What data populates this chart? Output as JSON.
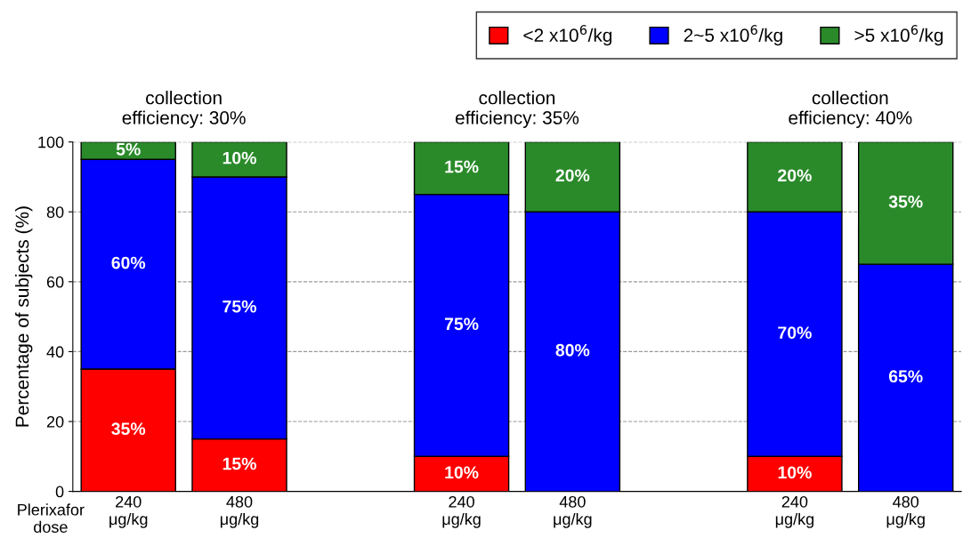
{
  "chart_data": {
    "type": "bar",
    "stacked": true,
    "categories": [
      "240\nμg/kg",
      "480\nμg/kg",
      null,
      "240\nμg/kg",
      "480\nμg/kg",
      null,
      "240\nμg/kg",
      "480\nμg/kg"
    ],
    "xlabel": "Plerixafor\ndose",
    "ylabel": "Percentage of subjects (%)",
    "series": [
      {
        "name": "<2 x10$^{6}$/kg",
        "color": "#ff0000",
        "values": [
          35,
          15,
          null,
          10,
          0,
          null,
          10,
          0
        ],
        "value_labels": [
          "35%",
          "15%",
          null,
          "10%",
          null,
          null,
          "10%",
          null
        ]
      },
      {
        "name": "2~5 x10$^{6}$/kg",
        "color": "#0000ff",
        "values": [
          60,
          75,
          null,
          75,
          80,
          null,
          70,
          65
        ],
        "value_labels": [
          "60%",
          "75%",
          null,
          "75%",
          "80%",
          null,
          "70%",
          "65%"
        ]
      },
      {
        "name": ">5 x10$^{6}$/kg",
        "color": "#2a8a2a",
        "values": [
          5,
          10,
          null,
          15,
          20,
          null,
          20,
          35
        ],
        "value_labels": [
          "5%",
          "10%",
          null,
          "15%",
          "20%",
          null,
          "20%",
          "35%"
        ]
      }
    ],
    "annotations": [
      "collection\nefficiency: 30%",
      "collection\nefficiency: 35%",
      "collection\nefficiency: 40%"
    ],
    "ylim": [
      0,
      100
    ],
    "yticks": [
      0,
      20,
      40,
      60,
      80,
      100
    ],
    "grid": "y",
    "legend": "top right"
  }
}
